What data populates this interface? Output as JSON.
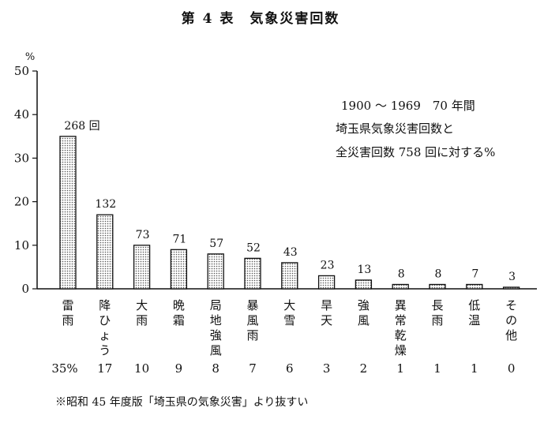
{
  "chart_data": {
    "type": "bar",
    "title": "第 4 表　気象災害回数",
    "y_unit": "%",
    "ylim": [
      0,
      50
    ],
    "yticks": [
      0,
      10,
      20,
      30,
      40,
      50
    ],
    "categories": [
      "雷雨",
      "降ひょう",
      "大雨",
      "晩霜",
      "局地強風",
      "暴風雨",
      "大雪",
      "旱天",
      "強風",
      "異常乾燥",
      "長雨",
      "低温",
      "その他"
    ],
    "values": [
      35,
      17,
      10,
      9,
      8,
      7,
      6,
      3,
      2,
      1,
      1,
      1,
      0
    ],
    "counts": [
      "268 回",
      "132",
      "73",
      "71",
      "57",
      "52",
      "43",
      "23",
      "13",
      "8",
      "8",
      "7",
      "3"
    ],
    "percent_labels": [
      "35%",
      "17",
      "10",
      "9",
      "8",
      "7",
      "6",
      "3",
      "2",
      "1",
      "1",
      "1",
      "0"
    ],
    "annotation": [
      "1900 ～ 1969　70 年間",
      "埼玉県気象災害回数と",
      "全災害回数 758 回に対する%"
    ],
    "source": "※昭和 45 年度版「埼玉県の気象災害」より抜すい",
    "bar_fill": "#c8c8c8",
    "bar_stroke": "#111111"
  }
}
